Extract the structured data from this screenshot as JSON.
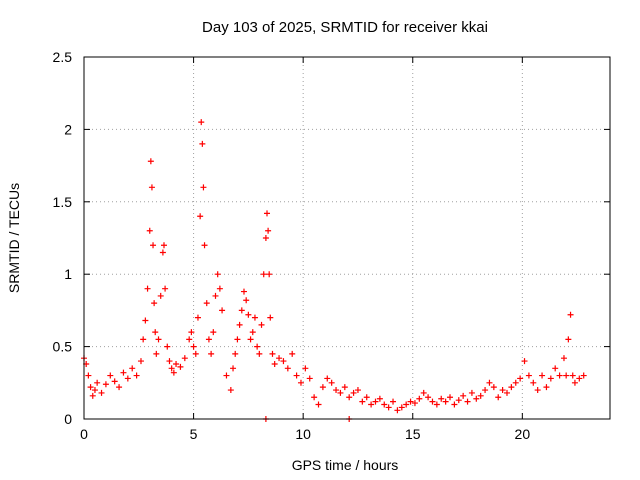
{
  "chart_data": {
    "type": "scatter",
    "title": "Day 103 of 2025, SRMTID for receiver kkai",
    "xlabel": "GPS time / hours",
    "ylabel": "SRMTID / TECUs",
    "xlim": [
      0,
      24
    ],
    "ylim": [
      0,
      2.5
    ],
    "xticks": [
      0,
      5,
      10,
      15,
      20
    ],
    "xtick_labels": [
      "0",
      "5",
      "10",
      "15",
      "20"
    ],
    "yticks": [
      0,
      0.5,
      1,
      1.5,
      2,
      2.5
    ],
    "ytick_labels": [
      "0",
      "0.5",
      "1",
      "1.5",
      "2",
      "2.5"
    ],
    "grid": true,
    "marker": "+",
    "series": [
      {
        "name": "SRMTID",
        "color": "#ff0000",
        "x": [
          0.0,
          0.1,
          0.2,
          0.3,
          0.4,
          0.5,
          0.6,
          0.8,
          1.0,
          1.2,
          1.4,
          1.6,
          1.8,
          2.0,
          2.2,
          2.4,
          2.6,
          2.7,
          2.8,
          2.9,
          3.0,
          3.05,
          3.1,
          3.15,
          3.2,
          3.25,
          3.3,
          3.4,
          3.5,
          3.6,
          3.65,
          3.7,
          3.8,
          3.9,
          4.0,
          4.1,
          4.2,
          4.4,
          4.6,
          4.8,
          4.9,
          5.0,
          5.1,
          5.2,
          5.3,
          5.35,
          5.4,
          5.45,
          5.5,
          5.6,
          5.7,
          5.8,
          5.9,
          6.0,
          6.1,
          6.2,
          6.3,
          6.5,
          6.7,
          6.8,
          6.9,
          7.0,
          7.1,
          7.2,
          7.3,
          7.4,
          7.5,
          7.6,
          7.7,
          7.8,
          7.9,
          8.0,
          8.1,
          8.2,
          8.3,
          8.35,
          8.4,
          8.45,
          8.5,
          8.6,
          8.7,
          8.9,
          9.1,
          9.3,
          9.5,
          9.7,
          9.9,
          10.1,
          10.3,
          10.5,
          10.7,
          10.9,
          11.1,
          11.3,
          11.5,
          11.7,
          11.9,
          12.1,
          12.3,
          12.5,
          12.7,
          12.9,
          13.1,
          13.3,
          13.5,
          13.7,
          13.9,
          14.1,
          14.3,
          14.5,
          14.7,
          14.9,
          15.1,
          15.3,
          15.5,
          15.7,
          15.9,
          16.1,
          16.3,
          16.5,
          16.7,
          16.9,
          17.1,
          17.3,
          17.5,
          17.7,
          17.9,
          18.1,
          18.3,
          18.5,
          18.7,
          18.9,
          19.1,
          19.3,
          19.5,
          19.7,
          19.9,
          20.1,
          20.3,
          20.5,
          20.7,
          20.9,
          21.1,
          21.3,
          21.5,
          21.7,
          21.9,
          22.0,
          22.1,
          22.2,
          22.3,
          22.4,
          22.6,
          22.8,
          8.3,
          12.1
        ],
        "y": [
          0.42,
          0.38,
          0.3,
          0.22,
          0.16,
          0.2,
          0.25,
          0.18,
          0.24,
          0.3,
          0.26,
          0.22,
          0.32,
          0.28,
          0.35,
          0.3,
          0.4,
          0.55,
          0.68,
          0.9,
          1.3,
          1.78,
          1.6,
          1.2,
          0.8,
          0.6,
          0.45,
          0.55,
          0.85,
          1.15,
          1.2,
          0.9,
          0.5,
          0.4,
          0.35,
          0.32,
          0.38,
          0.36,
          0.42,
          0.55,
          0.6,
          0.5,
          0.45,
          0.7,
          1.4,
          2.05,
          1.9,
          1.6,
          1.2,
          0.8,
          0.55,
          0.45,
          0.6,
          0.85,
          1.0,
          0.9,
          0.75,
          0.3,
          0.2,
          0.35,
          0.45,
          0.55,
          0.65,
          0.75,
          0.88,
          0.82,
          0.72,
          0.55,
          0.6,
          0.7,
          0.5,
          0.45,
          0.65,
          1.0,
          1.25,
          1.42,
          1.3,
          1.0,
          0.7,
          0.45,
          0.38,
          0.42,
          0.4,
          0.35,
          0.45,
          0.3,
          0.25,
          0.35,
          0.28,
          0.15,
          0.1,
          0.22,
          0.28,
          0.25,
          0.2,
          0.18,
          0.22,
          0.15,
          0.18,
          0.2,
          0.12,
          0.15,
          0.1,
          0.12,
          0.14,
          0.1,
          0.08,
          0.12,
          0.06,
          0.08,
          0.1,
          0.12,
          0.11,
          0.14,
          0.18,
          0.15,
          0.12,
          0.1,
          0.14,
          0.12,
          0.15,
          0.1,
          0.13,
          0.16,
          0.12,
          0.18,
          0.14,
          0.16,
          0.2,
          0.25,
          0.22,
          0.15,
          0.2,
          0.18,
          0.22,
          0.25,
          0.28,
          0.4,
          0.3,
          0.25,
          0.2,
          0.3,
          0.22,
          0.28,
          0.35,
          0.3,
          0.42,
          0.3,
          0.55,
          0.72,
          0.3,
          0.25,
          0.28,
          0.3,
          0.0,
          0.0
        ]
      }
    ]
  }
}
